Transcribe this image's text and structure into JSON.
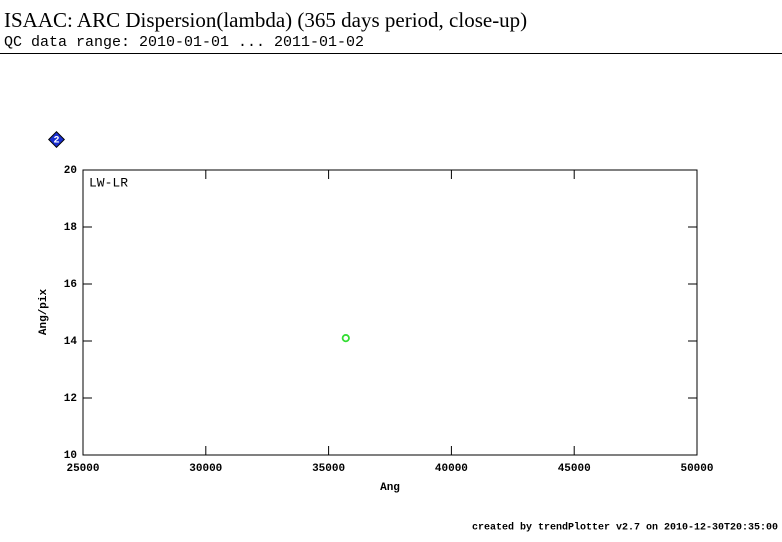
{
  "chart_data": {
    "type": "scatter",
    "title": "ISAAC: ARC Dispersion(lambda) (365 days period, close-up)",
    "subtitle": "QC data range: 2010-01-01 ... 2011-01-02",
    "badge": "2",
    "annotation": "LW-LR",
    "x_label": "Ang",
    "y_label": "Ang/pix",
    "footer": "created by trendPlotter v2.7 on 2010-12-30T20:35:00",
    "series": [
      {
        "name": "LW-LR",
        "color": "#33dd33",
        "x": [
          35700
        ],
        "values": [
          14.1
        ]
      }
    ],
    "xlim": [
      25000,
      50000
    ],
    "xticks": [
      25000,
      30000,
      35000,
      40000,
      45000,
      50000
    ],
    "ylim": [
      10,
      20
    ],
    "yticks": [
      10,
      12,
      14,
      16,
      18,
      20
    ]
  }
}
